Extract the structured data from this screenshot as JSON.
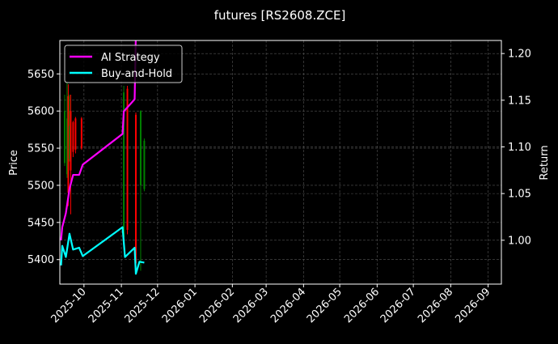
{
  "chart_data": {
    "type": "line",
    "title": "futures [RS2608.ZCE]",
    "xlabel": "",
    "ylabel_left": "Price",
    "ylabel_right": "Return",
    "xlim": [
      "2025-09-11",
      "2026-09-12"
    ],
    "ylim_left": [
      5367,
      5695
    ],
    "ylim_right": [
      0.953,
      1.214
    ],
    "x_ticks": [
      "2025-10",
      "2025-11",
      "2025-12",
      "2026-01",
      "2026-02",
      "2026-03",
      "2026-04",
      "2026-05",
      "2026-06",
      "2026-07",
      "2026-08",
      "2026-09"
    ],
    "y_ticks_left": [
      5400,
      5450,
      5500,
      5550,
      5600,
      5650
    ],
    "y_ticks_right": [
      1.0,
      1.05,
      1.1,
      1.15,
      1.2
    ],
    "grid": true,
    "legend_position": "top-left",
    "colors": {
      "up": "#008000",
      "down": "#ff0000",
      "strategy": "#ff00ff",
      "buy_hold": "#00ffff",
      "background": "#000000"
    },
    "candles": [
      {
        "date": "2025-09-15",
        "open": 5530,
        "high": 5622,
        "low": 5526,
        "close": 5600
      },
      {
        "date": "2025-09-17",
        "open": 5515,
        "high": 5640,
        "low": 5510,
        "close": 5590
      },
      {
        "date": "2025-09-18",
        "open": 5620,
        "high": 5636,
        "low": 5472,
        "close": 5490
      },
      {
        "date": "2025-09-19",
        "open": 5535,
        "high": 5622,
        "low": 5532,
        "close": 5580
      },
      {
        "date": "2025-09-20",
        "open": 5600,
        "high": 5622,
        "low": 5461,
        "close": 5520
      },
      {
        "date": "2025-09-22",
        "open": 5585,
        "high": 5587,
        "low": 5538,
        "close": 5545
      },
      {
        "date": "2025-09-24",
        "open": 5590,
        "high": 5592,
        "low": 5543,
        "close": 5548
      },
      {
        "date": "2025-09-29",
        "open": 5590,
        "high": 5592,
        "low": 5548,
        "close": 5550
      },
      {
        "date": "2025-11-03",
        "open": 5430,
        "high": 5634,
        "low": 5423,
        "close": 5625
      },
      {
        "date": "2025-11-06",
        "open": 5630,
        "high": 5634,
        "low": 5434,
        "close": 5440
      },
      {
        "date": "2025-11-13",
        "open": 5595,
        "high": 5598,
        "low": 5390,
        "close": 5395
      },
      {
        "date": "2025-11-17",
        "open": 5500,
        "high": 5601,
        "low": 5385,
        "close": 5600
      },
      {
        "date": "2025-11-20",
        "open": 5495,
        "high": 5563,
        "low": 5492,
        "close": 5560
      }
    ],
    "series": [
      {
        "name": "AI Strategy",
        "axis": "right",
        "x": [
          "2025-09-12",
          "2025-09-13",
          "2025-09-16",
          "2025-09-19",
          "2025-09-22",
          "2025-09-27",
          "2025-09-30",
          "2025-11-02",
          "2025-11-03",
          "2025-11-12",
          "2025-11-13"
        ],
        "values": [
          1.0,
          1.014,
          1.029,
          1.055,
          1.07,
          1.07,
          1.081,
          1.114,
          1.138,
          1.151,
          1.22
        ]
      },
      {
        "name": "Buy-and-Hold",
        "axis": "right",
        "x": [
          "2025-09-12",
          "2025-09-13",
          "2025-09-16",
          "2025-09-19",
          "2025-09-22",
          "2025-09-27",
          "2025-09-30",
          "2025-11-02",
          "2025-11-04",
          "2025-11-12",
          "2025-11-13",
          "2025-11-16",
          "2025-11-20"
        ],
        "values": [
          0.973,
          0.994,
          0.982,
          1.007,
          0.99,
          0.992,
          0.983,
          1.014,
          0.982,
          0.992,
          0.964,
          0.977,
          0.976
        ]
      }
    ]
  }
}
